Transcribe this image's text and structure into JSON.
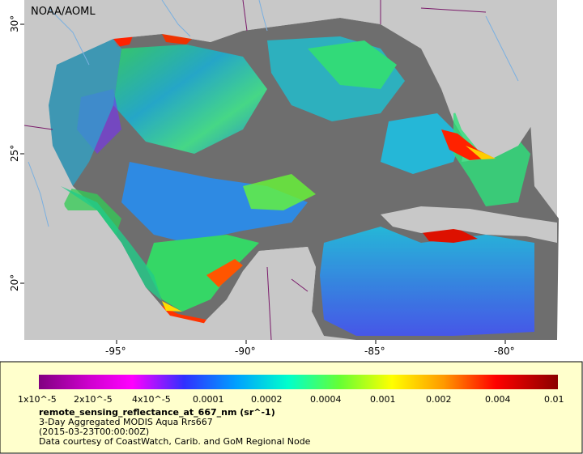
{
  "credit": "NOAA/AOML",
  "map": {
    "lon_labels": [
      "-95°",
      "-90°",
      "-85°",
      "-80°"
    ],
    "lat_labels": [
      "30°",
      "25°",
      "20°"
    ]
  },
  "legend": {
    "tick_labels": [
      "1x10^-5",
      "2x10^-5",
      "4x10^-5",
      "0.0001",
      "0.0002",
      "0.0004",
      "0.001",
      "0.002",
      "0.004",
      "0.01"
    ],
    "title": "remote_sensing_reflectance_at_667_nm (sr^-1)",
    "line1": "3-Day Aggregated MODIS Aqua Rrs667",
    "line2": "(2015-03-23T00:00:00Z)",
    "line3": "Data courtesy of CoastWatch, Carib. and GoM Regional Node"
  },
  "colors": {
    "land": "#c8c8c8",
    "no_data": "#6e6e6e",
    "legend_bg": "#ffffcc",
    "colorbar": [
      "#800080",
      "#cc00cc",
      "#ff00ff",
      "#3333ff",
      "#00a0ff",
      "#00ffcc",
      "#66ff33",
      "#ffff00",
      "#ff9900",
      "#ff0000",
      "#990000"
    ]
  }
}
